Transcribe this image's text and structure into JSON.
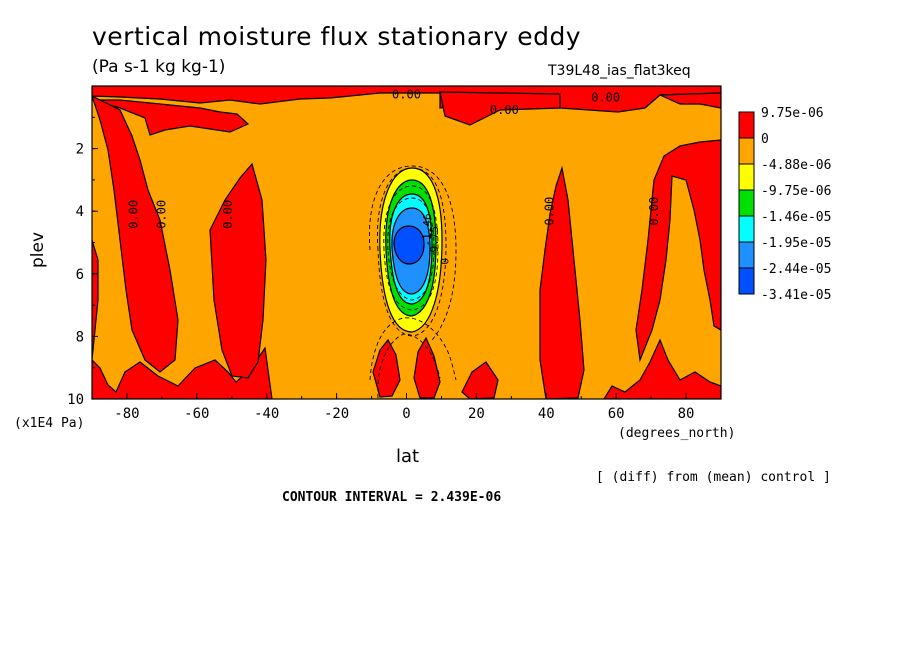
{
  "title": "vertical moisture flux stationary eddy",
  "units": "(Pa s-1 kg kg-1)",
  "run_label": "T39L48_ias_flat3keq",
  "diff_note": "[ (diff) from (mean) control ]",
  "contour_interval": "CONTOUR INTERVAL = 2.439E-06",
  "chart_data": {
    "type": "heatmap",
    "title": "vertical moisture flux stationary eddy",
    "xlabel": "lat",
    "x_units": "(degrees_north)",
    "ylabel": "plev",
    "y_units": "(x1E4 Pa)",
    "xlim": [
      -90,
      90
    ],
    "ylim": [
      10,
      0
    ],
    "x_ticks": [
      "-80",
      "-60",
      "-40",
      "-20",
      "0",
      "20",
      "40",
      "60",
      "80"
    ],
    "y_ticks": [
      "2",
      "4",
      "6",
      "8",
      "10"
    ],
    "colorbar": [
      {
        "label": "9.75e-06",
        "color": "#ff0000"
      },
      {
        "label": "0",
        "color": "#ffa500"
      },
      {
        "label": "-4.88e-06",
        "color": "#ffff00"
      },
      {
        "label": "-9.75e-06",
        "color": "#00e000"
      },
      {
        "label": "-1.46e-05",
        "color": "#00ffff"
      },
      {
        "label": "-1.95e-05",
        "color": "#1e90ff"
      },
      {
        "label": "-2.44e-05",
        "color": "#0050ff"
      },
      {
        "label": "-3.41e-05",
        "color": ""
      }
    ],
    "contour_labels": [
      {
        "text": "0.00",
        "lat": 0,
        "plev": 0.4
      },
      {
        "text": "0.00",
        "lat": 57,
        "plev": 0.5
      },
      {
        "text": "0.00",
        "lat": 28,
        "plev": 0.9
      },
      {
        "text": "0.00",
        "lat": -77,
        "plev": 4.1
      },
      {
        "text": "0.00",
        "lat": -69,
        "plev": 4.1
      },
      {
        "text": "0.00",
        "lat": -50,
        "plev": 4.1
      },
      {
        "text": "0.00",
        "lat": 42,
        "plev": 4.0
      },
      {
        "text": "0.00",
        "lat": 72,
        "plev": 4.0
      }
    ],
    "center_values": [
      {
        "text": "-1.46",
        "lat": 7,
        "plev": 4.6
      },
      {
        "text": "-9.75",
        "lat": 9,
        "plev": 5.0
      },
      {
        "text": "0",
        "lat": 12,
        "plev": 5.6
      }
    ]
  }
}
